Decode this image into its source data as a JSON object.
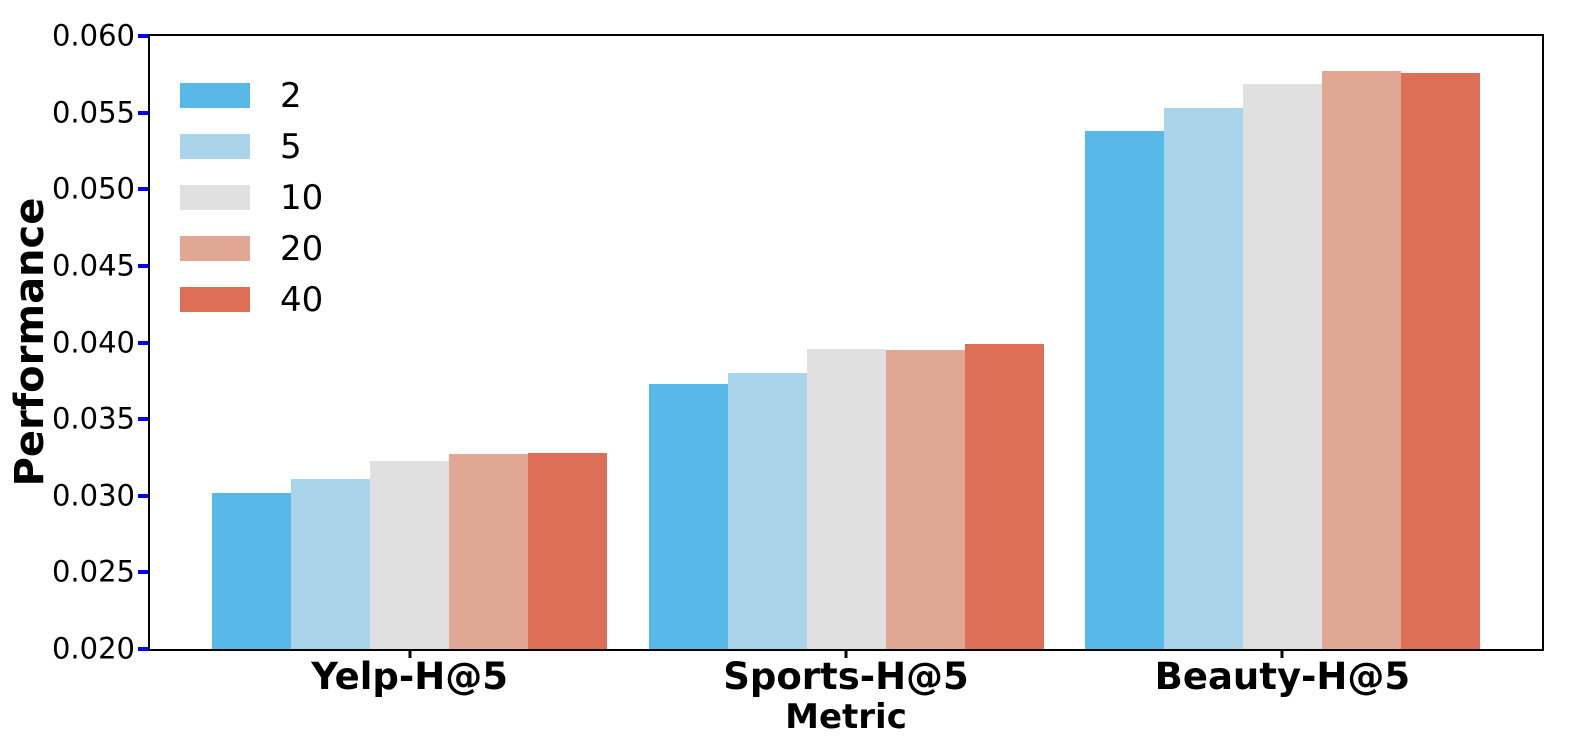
{
  "figure": {
    "background": "#ffffff",
    "spine_color": "#000000",
    "ytick_mark_color": "#0000FF",
    "xtick_mark_color": "#000000"
  },
  "chart_data": {
    "type": "bar",
    "title": "",
    "xlabel": "Metric",
    "ylabel": "Performance",
    "categories": [
      "Yelp-H@5",
      "Sports-H@5",
      "Beauty-H@5"
    ],
    "series": [
      {
        "name": "2",
        "color": "#58B9E9",
        "values": [
          0.0302,
          0.0373,
          0.0538
        ]
      },
      {
        "name": "5",
        "color": "#A9D4E9",
        "values": [
          0.0311,
          0.038,
          0.0553
        ]
      },
      {
        "name": "10",
        "color": "#E0E0E0",
        "values": [
          0.0323,
          0.0396,
          0.0569
        ]
      },
      {
        "name": "20",
        "color": "#E0A795",
        "values": [
          0.0327,
          0.0395,
          0.0577
        ]
      },
      {
        "name": "40",
        "color": "#DD6F56",
        "values": [
          0.0328,
          0.0399,
          0.0576
        ]
      }
    ],
    "ylim": [
      0.02,
      0.06
    ],
    "yticks": [
      "0.020",
      "0.025",
      "0.030",
      "0.035",
      "0.040",
      "0.045",
      "0.050",
      "0.055",
      "0.060"
    ],
    "grid": false,
    "legend_position": "upper-left",
    "legend_frame": false
  }
}
